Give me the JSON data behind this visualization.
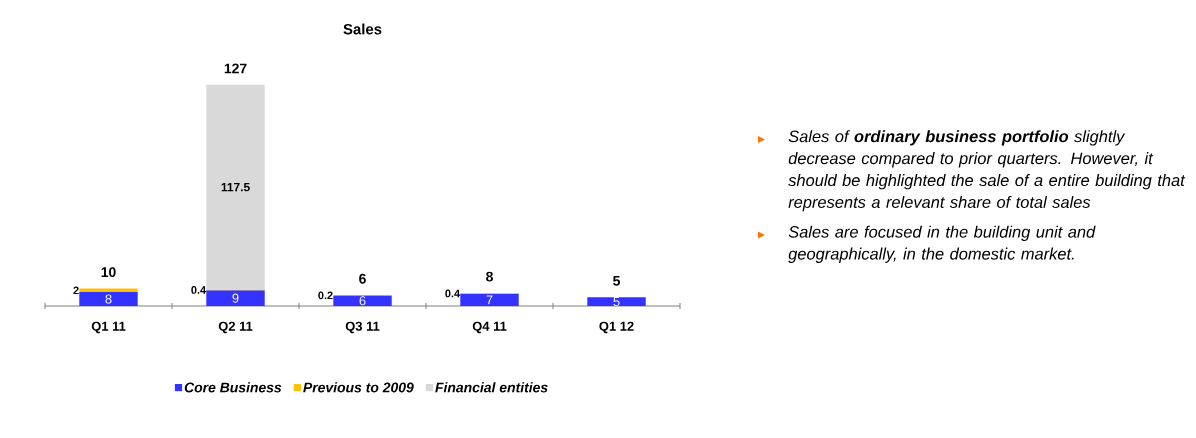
{
  "chart_data": {
    "type": "bar",
    "title": "Sales",
    "stacked": true,
    "data_labels": true,
    "legend": "bottom",
    "categories": [
      "Q1 11",
      "Q2 11",
      "Q3 11",
      "Q4 11",
      "Q1 12"
    ],
    "series": [
      {
        "name": "Core Business",
        "color": "#3333ff",
        "values": [
          8,
          9,
          6,
          7,
          5
        ]
      },
      {
        "name": "Previous to 2009",
        "color": "#ffc000",
        "values": [
          2,
          0.4,
          0.2,
          0.4,
          null
        ]
      },
      {
        "name": "Financial entities",
        "color": "#d9d9d9",
        "values": [
          null,
          117.5,
          null,
          null,
          null
        ]
      }
    ],
    "totals": [
      "10",
      "127",
      "6",
      "8",
      "5"
    ],
    "annotations": [
      "Sales of **ordinary business portfolio** slightly decrease compared to prior quarters. However, it should be highlighted the sale of a entire building that represents a relevant share of total sales",
      "Sales are focused in the building unit and geographically, in the domestic market."
    ]
  }
}
